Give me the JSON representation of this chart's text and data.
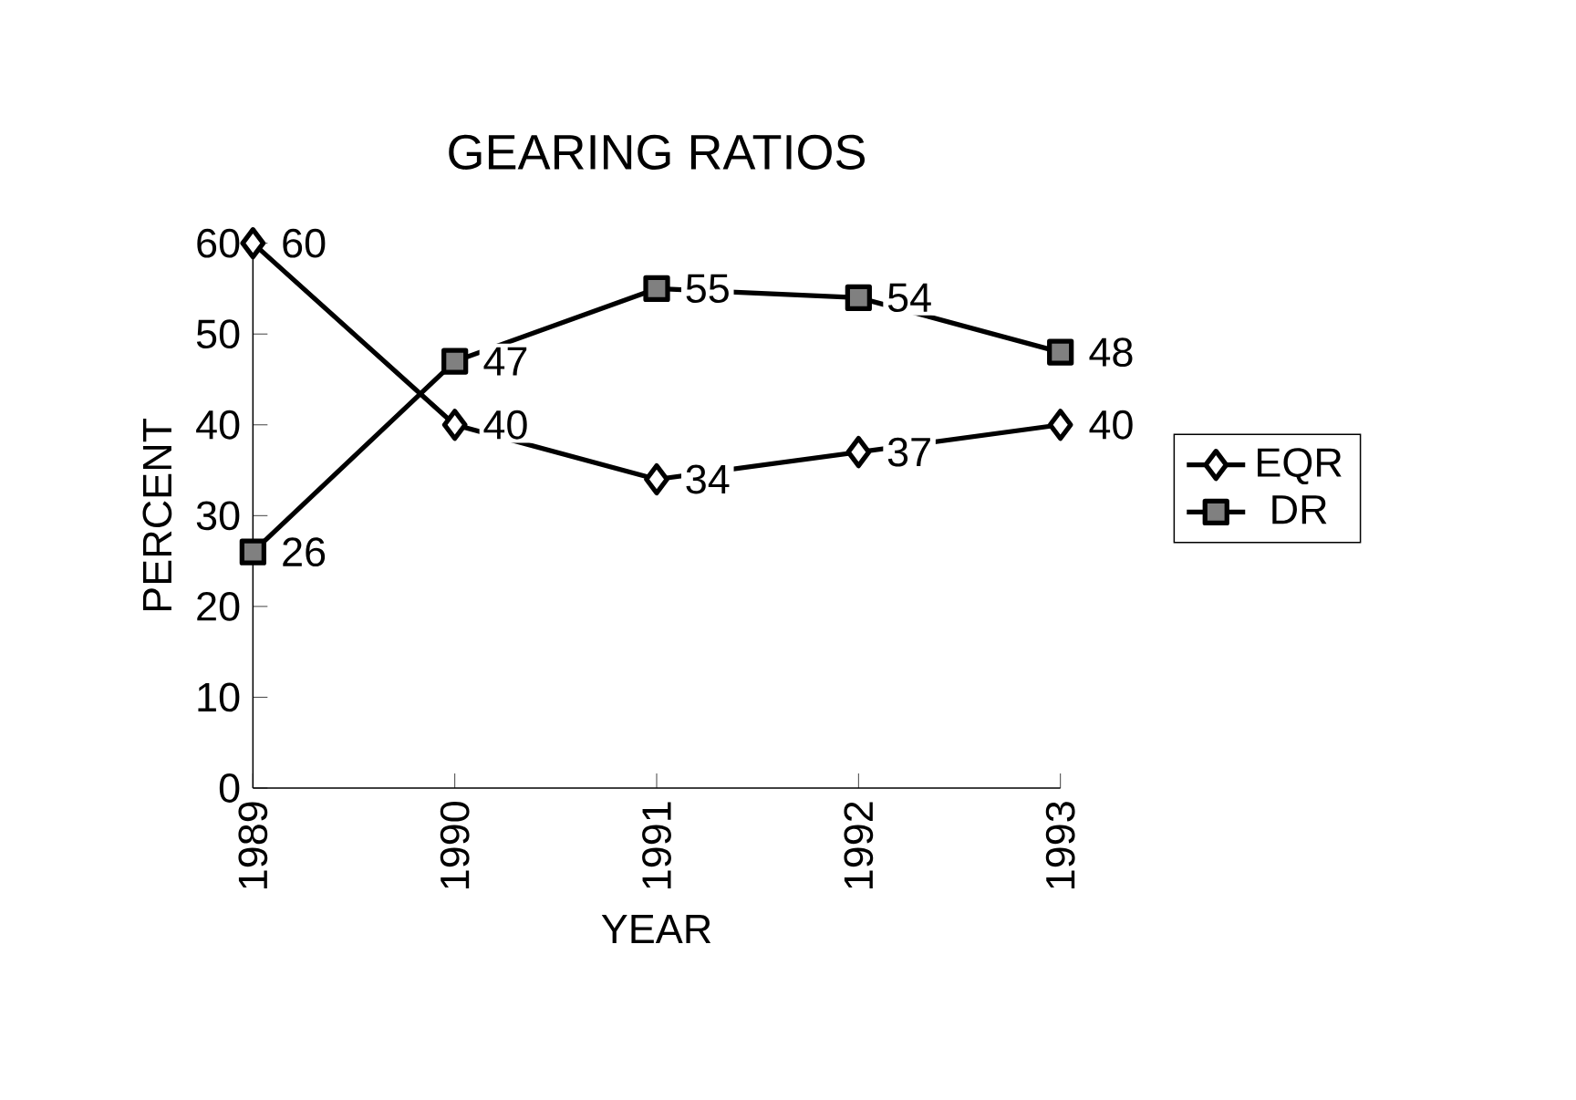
{
  "chart_data": {
    "type": "line",
    "title": "GEARING RATIOS",
    "xlabel": "YEAR",
    "ylabel": "PERCENT",
    "categories": [
      "1989",
      "1990",
      "1991",
      "1992",
      "1993"
    ],
    "series": [
      {
        "name": "EQR",
        "color": "#000000",
        "marker": "diamond",
        "values": [
          60,
          40,
          34,
          37,
          40
        ]
      },
      {
        "name": "DR",
        "color": "#000000",
        "marker": "square",
        "values": [
          26,
          47,
          55,
          54,
          48
        ]
      }
    ],
    "ylim": [
      0,
      60
    ],
    "yticks": [
      0,
      10,
      20,
      30,
      40,
      50,
      60
    ],
    "data_labels": true,
    "legend": "right",
    "grid": false
  }
}
